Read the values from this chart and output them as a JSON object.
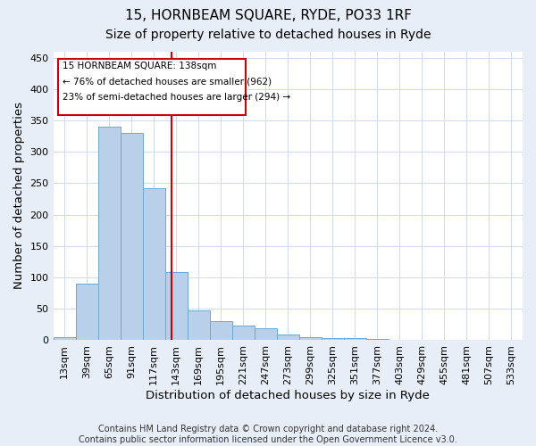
{
  "title": "15, HORNBEAM SQUARE, RYDE, PO33 1RF",
  "subtitle": "Size of property relative to detached houses in Ryde",
  "xlabel": "Distribution of detached houses by size in Ryde",
  "ylabel": "Number of detached properties",
  "footer_line1": "Contains HM Land Registry data © Crown copyright and database right 2024.",
  "footer_line2": "Contains public sector information licensed under the Open Government Licence v3.0.",
  "categories": [
    "13sqm",
    "39sqm",
    "65sqm",
    "91sqm",
    "117sqm",
    "143sqm",
    "169sqm",
    "195sqm",
    "221sqm",
    "247sqm",
    "273sqm",
    "299sqm",
    "325sqm",
    "351sqm",
    "377sqm",
    "403sqm",
    "429sqm",
    "455sqm",
    "481sqm",
    "507sqm",
    "533sqm"
  ],
  "values": [
    5,
    90,
    340,
    330,
    242,
    108,
    47,
    30,
    24,
    19,
    9,
    5,
    4,
    3,
    2,
    1,
    1,
    1,
    0,
    1,
    0
  ],
  "bar_color": "#b8d0ea",
  "bar_edgecolor": "#6aaad4",
  "marker_color": "#cc0000",
  "annotation_line1": "15 HORNBEAM SQUARE: 138sqm",
  "annotation_line2": "← 76% of detached houses are smaller (962)",
  "annotation_line3": "23% of semi-detached houses are larger (294) →",
  "annotation_box_color": "white",
  "annotation_box_edgecolor": "#cc0000",
  "ylim": [
    0,
    460
  ],
  "yticks": [
    0,
    50,
    100,
    150,
    200,
    250,
    300,
    350,
    400,
    450
  ],
  "title_fontsize": 11,
  "subtitle_fontsize": 10,
  "tick_fontsize": 8,
  "label_fontsize": 9.5,
  "footer_fontsize": 7,
  "background_color": "#e8eef8",
  "plot_background": "#ffffff",
  "grid_color": "#c8d4e8"
}
